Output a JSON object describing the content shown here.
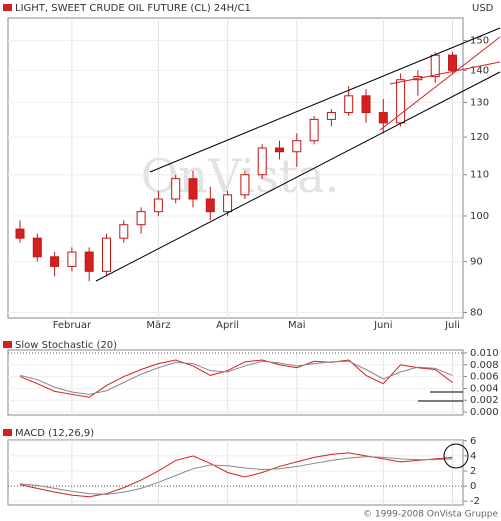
{
  "chart_data": [
    {
      "type": "candlestick",
      "title": "LIGHT, SWEET CRUDE OIL FUTURE (CL) 24H/C1",
      "unit": "USD",
      "watermark": "OnVista.",
      "log_scale": true,
      "grid": true,
      "up_color": "#ffffff",
      "down_color": "#d42020",
      "edge_color": "#c01818",
      "categories": [
        null,
        null,
        null,
        "Februar",
        null,
        null,
        null,
        null,
        "März",
        null,
        null,
        null,
        "April",
        null,
        null,
        null,
        "Mai",
        null,
        null,
        null,
        null,
        "Juni",
        null,
        null,
        null,
        "Juli"
      ],
      "open": [
        97,
        95,
        91,
        89,
        92,
        88,
        95,
        98,
        101,
        104,
        109,
        104,
        101,
        105,
        110,
        117,
        116,
        119,
        125,
        127,
        132,
        127,
        124,
        137,
        138,
        145
      ],
      "high": [
        99,
        96,
        92,
        93,
        93,
        96,
        99,
        102,
        106,
        110,
        111,
        107,
        106,
        111,
        118,
        119,
        121,
        126,
        128,
        135,
        134,
        131,
        139,
        140,
        146,
        146
      ],
      "low": [
        94,
        90,
        87,
        88,
        86,
        87,
        94,
        96,
        100,
        103,
        102,
        99,
        100,
        104,
        109,
        114,
        112,
        118,
        123,
        126,
        124,
        121,
        123,
        132,
        136,
        139
      ],
      "close": [
        95,
        91,
        89,
        92,
        88,
        95,
        98,
        101,
        104,
        109,
        104,
        101,
        105,
        110,
        117,
        116,
        119,
        125,
        127,
        132,
        127,
        124,
        137,
        138,
        145,
        140
      ],
      "ylim": [
        79,
        158
      ],
      "yticks": [
        80,
        90,
        100,
        110,
        120,
        130,
        140,
        150
      ]
    },
    {
      "type": "line",
      "title": "Slow Stochastic (20)",
      "grid": true,
      "series": [
        {
          "color": "#d42020",
          "values": [
            0.006,
            0.0048,
            0.0035,
            0.003,
            0.0025,
            0.0045,
            0.006,
            0.0072,
            0.0082,
            0.0088,
            0.0078,
            0.0062,
            0.007,
            0.0085,
            0.0088,
            0.008,
            0.0075,
            0.0086,
            0.0084,
            0.0088,
            0.0062,
            0.0048,
            0.008,
            0.0075,
            0.0072,
            0.005
          ]
        },
        {
          "color": "#888888",
          "values": [
            0.0062,
            0.0055,
            0.0042,
            0.0034,
            0.003,
            0.0036,
            0.005,
            0.0064,
            0.0075,
            0.0084,
            0.0082,
            0.007,
            0.0068,
            0.0078,
            0.0086,
            0.0083,
            0.0078,
            0.0082,
            0.0085,
            0.0086,
            0.0072,
            0.0056,
            0.0068,
            0.0076,
            0.0074,
            0.0062
          ]
        }
      ],
      "ylim": [
        -0.0005,
        0.0105
      ],
      "yticks": [
        {
          "value": 0.01,
          "label": "0.010"
        },
        {
          "value": 0.008,
          "label": "0.008"
        },
        {
          "value": 0.006,
          "label": "0.006"
        },
        {
          "value": 0.004,
          "label": "0.004"
        },
        {
          "value": 0.002,
          "label": "0.002"
        },
        {
          "value": 0,
          "label": "0.000"
        }
      ]
    },
    {
      "type": "line",
      "title": "MACD (12,26,9)",
      "grid": true,
      "series": [
        {
          "color": "#d42020",
          "values": [
            0.2,
            -0.3,
            -0.8,
            -1.2,
            -1.4,
            -1.0,
            -0.2,
            0.8,
            2.0,
            3.4,
            4.0,
            3.0,
            1.8,
            1.2,
            1.8,
            2.6,
            3.2,
            3.8,
            4.2,
            4.4,
            4.0,
            3.6,
            3.2,
            3.4,
            3.6,
            3.8
          ]
        },
        {
          "color": "#888888",
          "values": [
            0.3,
            0.1,
            -0.3,
            -0.7,
            -1.0,
            -1.1,
            -0.8,
            -0.3,
            0.5,
            1.4,
            2.3,
            2.8,
            2.7,
            2.4,
            2.2,
            2.3,
            2.6,
            3.0,
            3.4,
            3.7,
            3.9,
            3.8,
            3.6,
            3.5,
            3.5,
            3.6
          ]
        }
      ],
      "ylim": [
        -2.5,
        6.1
      ],
      "yticks": [
        6,
        4,
        2,
        0,
        -2
      ]
    }
  ],
  "footer": "© 1999-2008 OnVista Gruppe"
}
